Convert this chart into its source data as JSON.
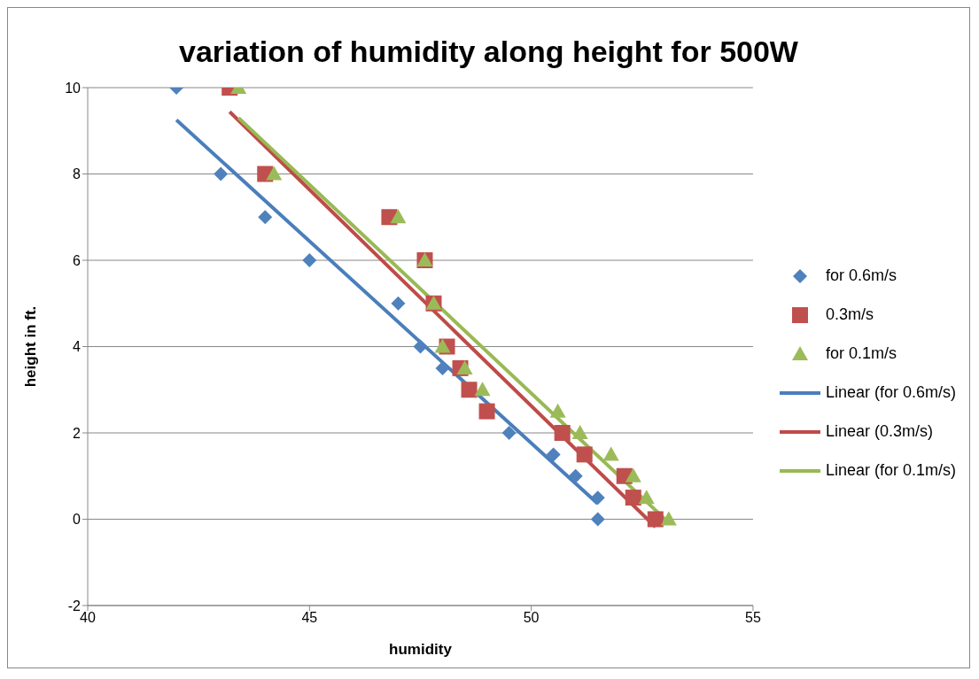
{
  "chart_data": {
    "type": "scatter",
    "title": "variation of humidity along height for 500W",
    "xlabel": "humidity",
    "ylabel": "height in ft.",
    "xlim": [
      40,
      55
    ],
    "xticks": [
      40,
      45,
      50,
      55
    ],
    "ylim": [
      -2,
      10
    ],
    "yticks": [
      -2,
      0,
      2,
      4,
      6,
      8,
      10
    ],
    "grid": "y",
    "legend": "right",
    "series": [
      {
        "name": "for 0.6m/s",
        "marker": "diamond",
        "color": "#4f81bd",
        "x": [
          42.0,
          43.0,
          44.0,
          45.0,
          47.0,
          47.5,
          48.0,
          49.5,
          50.5,
          51.0,
          51.5,
          51.5
        ],
        "values": [
          10,
          8,
          7,
          6,
          5,
          4,
          3.5,
          2,
          1.5,
          1,
          0.5,
          0
        ]
      },
      {
        "name": "0.3m/s",
        "marker": "square",
        "color": "#c0504d",
        "x": [
          43.2,
          44.0,
          46.8,
          47.6,
          47.8,
          48.1,
          48.4,
          48.6,
          49.0,
          50.7,
          51.2,
          52.1,
          52.3,
          52.8
        ],
        "values": [
          10,
          8,
          7,
          6,
          5,
          4,
          3.5,
          3,
          2.5,
          2,
          1.5,
          1,
          0.5,
          0
        ]
      },
      {
        "name": "for 0.1m/s",
        "marker": "triangle",
        "color": "#9bbb59",
        "x": [
          43.4,
          44.2,
          47.0,
          47.6,
          47.8,
          48.0,
          48.5,
          48.9,
          50.6,
          51.1,
          51.8,
          52.3,
          52.6,
          53.1
        ],
        "values": [
          10,
          8,
          7,
          6,
          5,
          4,
          3.5,
          3,
          2.5,
          2,
          1.5,
          1,
          0.5,
          0
        ]
      },
      {
        "name": "Linear (for 0.6m/s)",
        "type": "line",
        "marker": "none",
        "color": "#4a7ebb",
        "x": [
          42.0,
          51.5
        ],
        "values": [
          9.25,
          0.36
        ]
      },
      {
        "name": "Linear (0.3m/s)",
        "type": "line",
        "marker": "none",
        "color": "#be4b48",
        "x": [
          43.2,
          52.8
        ],
        "values": [
          9.44,
          -0.18
        ]
      },
      {
        "name": "Linear (for 0.1m/s)",
        "type": "line",
        "marker": "none",
        "color": "#98b954",
        "x": [
          43.4,
          53.1
        ],
        "values": [
          9.3,
          -0.08
        ]
      }
    ]
  }
}
